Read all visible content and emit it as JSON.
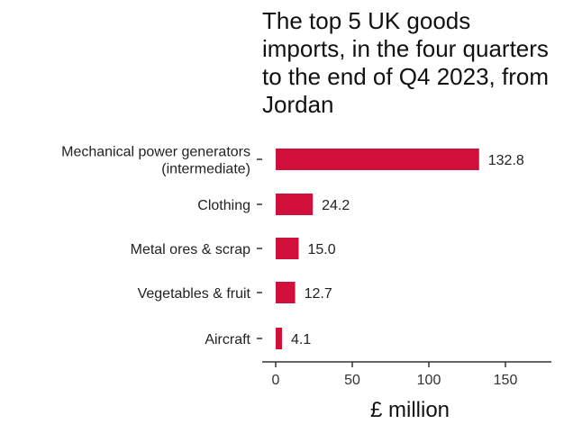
{
  "chart_data": {
    "type": "bar",
    "orientation": "horizontal",
    "title": "The top 5 UK goods imports, in the four quarters to the end of Q4 2023, from Jordan",
    "xlabel": "£ million",
    "ylabel": "",
    "categories": [
      [
        "Mechanical power generators",
        "(intermediate)"
      ],
      [
        "Clothing"
      ],
      [
        "Metal ores & scrap"
      ],
      [
        "Vegetables & fruit"
      ],
      [
        "Aircraft"
      ]
    ],
    "values": [
      132.8,
      24.2,
      15.0,
      12.7,
      4.1
    ],
    "value_labels": [
      "132.8",
      "24.2",
      "15.0",
      "12.7",
      "4.1"
    ],
    "xlim": [
      0,
      180
    ],
    "xticks": [
      0,
      50,
      100,
      150
    ],
    "xtick_labels": [
      "0",
      "50",
      "100",
      "150"
    ],
    "grid": false,
    "legend": "none",
    "bar_color": "#d0103a"
  }
}
